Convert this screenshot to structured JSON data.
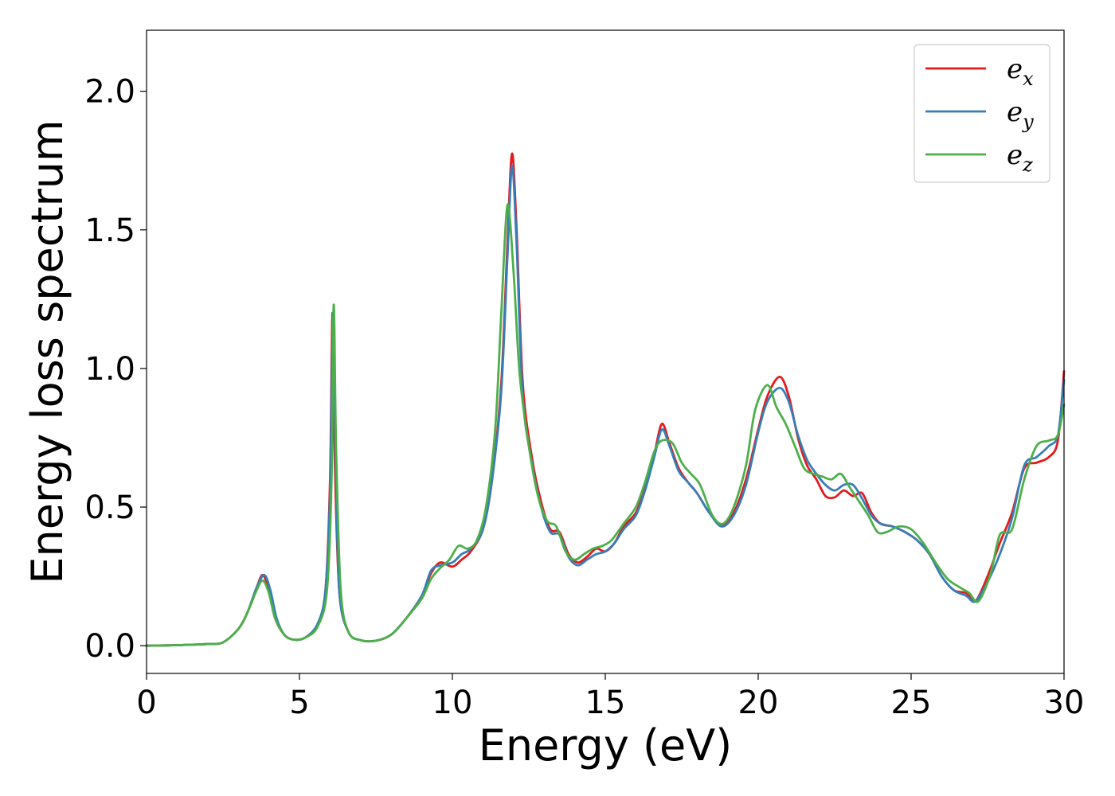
{
  "chart_data": {
    "type": "line",
    "title": "",
    "xlabel": "Energy (eV)",
    "ylabel": "Energy loss spectrum",
    "xlim": [
      0,
      30
    ],
    "ylim": [
      -0.1,
      2.22
    ],
    "xticks": [
      0,
      5,
      10,
      15,
      20,
      25,
      30
    ],
    "xtick_labels": [
      "0",
      "5",
      "10",
      "15",
      "20",
      "25",
      "30"
    ],
    "yticks": [
      0.0,
      0.5,
      1.0,
      1.5,
      2.0
    ],
    "ytick_labels": [
      "0.0",
      "0.5",
      "1.0",
      "1.5",
      "2.0"
    ],
    "grid": false,
    "legend_position": "top-right",
    "series": [
      {
        "name": "e_x",
        "legend_base": "e",
        "legend_sub": "x",
        "color": "#e41a1c",
        "points": [
          [
            0,
            0
          ],
          [
            1,
            0.002
          ],
          [
            2,
            0.006
          ],
          [
            2.5,
            0.012
          ],
          [
            3,
            0.06
          ],
          [
            3.3,
            0.12
          ],
          [
            3.6,
            0.21
          ],
          [
            3.8,
            0.255
          ],
          [
            4.0,
            0.2
          ],
          [
            4.2,
            0.1
          ],
          [
            4.5,
            0.04
          ],
          [
            4.8,
            0.022
          ],
          [
            5.2,
            0.03
          ],
          [
            5.6,
            0.08
          ],
          [
            5.85,
            0.2
          ],
          [
            6.0,
            0.6
          ],
          [
            6.08,
            1.2
          ],
          [
            6.15,
            0.7
          ],
          [
            6.3,
            0.2
          ],
          [
            6.6,
            0.05
          ],
          [
            7.0,
            0.02
          ],
          [
            7.5,
            0.018
          ],
          [
            8.0,
            0.04
          ],
          [
            8.5,
            0.1
          ],
          [
            9.0,
            0.18
          ],
          [
            9.3,
            0.26
          ],
          [
            9.6,
            0.3
          ],
          [
            10.0,
            0.285
          ],
          [
            10.3,
            0.31
          ],
          [
            10.6,
            0.34
          ],
          [
            11.0,
            0.42
          ],
          [
            11.3,
            0.6
          ],
          [
            11.6,
            0.95
          ],
          [
            11.8,
            1.45
          ],
          [
            11.95,
            1.775
          ],
          [
            12.1,
            1.5
          ],
          [
            12.3,
            0.95
          ],
          [
            12.6,
            0.68
          ],
          [
            12.9,
            0.52
          ],
          [
            13.2,
            0.42
          ],
          [
            13.5,
            0.41
          ],
          [
            13.8,
            0.33
          ],
          [
            14.1,
            0.3
          ],
          [
            14.4,
            0.32
          ],
          [
            14.7,
            0.35
          ],
          [
            15.0,
            0.34
          ],
          [
            15.3,
            0.37
          ],
          [
            15.6,
            0.43
          ],
          [
            16.0,
            0.48
          ],
          [
            16.3,
            0.57
          ],
          [
            16.6,
            0.69
          ],
          [
            16.85,
            0.8
          ],
          [
            17.1,
            0.73
          ],
          [
            17.4,
            0.64
          ],
          [
            17.7,
            0.59
          ],
          [
            18.0,
            0.55
          ],
          [
            18.4,
            0.48
          ],
          [
            18.8,
            0.435
          ],
          [
            19.2,
            0.48
          ],
          [
            19.6,
            0.6
          ],
          [
            20.0,
            0.78
          ],
          [
            20.3,
            0.9
          ],
          [
            20.7,
            0.97
          ],
          [
            21.0,
            0.9
          ],
          [
            21.3,
            0.75
          ],
          [
            21.6,
            0.65
          ],
          [
            21.9,
            0.6
          ],
          [
            22.2,
            0.54
          ],
          [
            22.5,
            0.535
          ],
          [
            22.8,
            0.56
          ],
          [
            23.1,
            0.54
          ],
          [
            23.4,
            0.55
          ],
          [
            23.7,
            0.48
          ],
          [
            24.0,
            0.44
          ],
          [
            24.4,
            0.43
          ],
          [
            24.8,
            0.41
          ],
          [
            25.2,
            0.38
          ],
          [
            25.6,
            0.33
          ],
          [
            26.0,
            0.25
          ],
          [
            26.4,
            0.2
          ],
          [
            26.8,
            0.19
          ],
          [
            27.1,
            0.16
          ],
          [
            27.5,
            0.25
          ],
          [
            27.9,
            0.37
          ],
          [
            28.3,
            0.48
          ],
          [
            28.7,
            0.64
          ],
          [
            29.1,
            0.66
          ],
          [
            29.5,
            0.68
          ],
          [
            29.8,
            0.74
          ],
          [
            30,
            0.99
          ]
        ]
      },
      {
        "name": "e_y",
        "legend_base": "e",
        "legend_sub": "y",
        "color": "#377eb8",
        "points": [
          [
            0,
            0
          ],
          [
            1,
            0.002
          ],
          [
            2,
            0.006
          ],
          [
            2.5,
            0.012
          ],
          [
            3,
            0.06
          ],
          [
            3.3,
            0.12
          ],
          [
            3.6,
            0.21
          ],
          [
            3.85,
            0.255
          ],
          [
            4.05,
            0.2
          ],
          [
            4.25,
            0.1
          ],
          [
            4.5,
            0.04
          ],
          [
            4.8,
            0.022
          ],
          [
            5.2,
            0.03
          ],
          [
            5.6,
            0.08
          ],
          [
            5.85,
            0.2
          ],
          [
            6.0,
            0.55
          ],
          [
            6.1,
            1.2
          ],
          [
            6.18,
            0.7
          ],
          [
            6.3,
            0.2
          ],
          [
            6.6,
            0.05
          ],
          [
            7.0,
            0.02
          ],
          [
            7.5,
            0.018
          ],
          [
            8.0,
            0.04
          ],
          [
            8.5,
            0.1
          ],
          [
            9.0,
            0.18
          ],
          [
            9.3,
            0.27
          ],
          [
            9.6,
            0.29
          ],
          [
            10.0,
            0.3
          ],
          [
            10.3,
            0.33
          ],
          [
            10.6,
            0.35
          ],
          [
            11.0,
            0.42
          ],
          [
            11.3,
            0.6
          ],
          [
            11.6,
            0.92
          ],
          [
            11.8,
            1.4
          ],
          [
            11.95,
            1.73
          ],
          [
            12.1,
            1.45
          ],
          [
            12.3,
            0.9
          ],
          [
            12.6,
            0.66
          ],
          [
            12.9,
            0.5
          ],
          [
            13.2,
            0.41
          ],
          [
            13.5,
            0.4
          ],
          [
            13.8,
            0.32
          ],
          [
            14.1,
            0.29
          ],
          [
            14.4,
            0.31
          ],
          [
            14.7,
            0.33
          ],
          [
            15.0,
            0.34
          ],
          [
            15.3,
            0.37
          ],
          [
            15.6,
            0.42
          ],
          [
            16.0,
            0.47
          ],
          [
            16.3,
            0.56
          ],
          [
            16.6,
            0.68
          ],
          [
            16.85,
            0.78
          ],
          [
            17.1,
            0.72
          ],
          [
            17.4,
            0.63
          ],
          [
            17.7,
            0.59
          ],
          [
            18.0,
            0.55
          ],
          [
            18.4,
            0.48
          ],
          [
            18.8,
            0.43
          ],
          [
            19.2,
            0.47
          ],
          [
            19.6,
            0.58
          ],
          [
            20.0,
            0.77
          ],
          [
            20.3,
            0.88
          ],
          [
            20.7,
            0.93
          ],
          [
            21.0,
            0.88
          ],
          [
            21.3,
            0.76
          ],
          [
            21.6,
            0.67
          ],
          [
            21.9,
            0.62
          ],
          [
            22.2,
            0.58
          ],
          [
            22.5,
            0.56
          ],
          [
            22.8,
            0.58
          ],
          [
            23.1,
            0.58
          ],
          [
            23.4,
            0.53
          ],
          [
            23.7,
            0.47
          ],
          [
            24.0,
            0.44
          ],
          [
            24.4,
            0.43
          ],
          [
            24.8,
            0.41
          ],
          [
            25.2,
            0.38
          ],
          [
            25.6,
            0.33
          ],
          [
            26.0,
            0.25
          ],
          [
            26.4,
            0.2
          ],
          [
            26.8,
            0.18
          ],
          [
            27.1,
            0.16
          ],
          [
            27.5,
            0.23
          ],
          [
            27.9,
            0.33
          ],
          [
            28.3,
            0.46
          ],
          [
            28.7,
            0.65
          ],
          [
            29.1,
            0.68
          ],
          [
            29.5,
            0.72
          ],
          [
            29.8,
            0.76
          ],
          [
            30,
            0.96
          ]
        ]
      },
      {
        "name": "e_z",
        "legend_base": "e",
        "legend_sub": "z",
        "color": "#4daf4a",
        "points": [
          [
            0,
            0
          ],
          [
            1,
            0.002
          ],
          [
            2,
            0.006
          ],
          [
            2.5,
            0.012
          ],
          [
            3,
            0.06
          ],
          [
            3.3,
            0.12
          ],
          [
            3.6,
            0.2
          ],
          [
            3.8,
            0.235
          ],
          [
            4.0,
            0.19
          ],
          [
            4.2,
            0.1
          ],
          [
            4.5,
            0.04
          ],
          [
            4.8,
            0.022
          ],
          [
            5.2,
            0.03
          ],
          [
            5.6,
            0.07
          ],
          [
            5.9,
            0.2
          ],
          [
            6.05,
            0.6
          ],
          [
            6.12,
            1.23
          ],
          [
            6.2,
            0.7
          ],
          [
            6.35,
            0.2
          ],
          [
            6.6,
            0.05
          ],
          [
            7.0,
            0.02
          ],
          [
            7.5,
            0.018
          ],
          [
            8.0,
            0.04
          ],
          [
            8.5,
            0.1
          ],
          [
            9.0,
            0.17
          ],
          [
            9.3,
            0.24
          ],
          [
            9.6,
            0.28
          ],
          [
            9.9,
            0.31
          ],
          [
            10.2,
            0.36
          ],
          [
            10.5,
            0.35
          ],
          [
            10.8,
            0.38
          ],
          [
            11.1,
            0.5
          ],
          [
            11.4,
            0.78
          ],
          [
            11.6,
            1.2
          ],
          [
            11.8,
            1.59
          ],
          [
            12.0,
            1.35
          ],
          [
            12.2,
            0.98
          ],
          [
            12.5,
            0.72
          ],
          [
            12.8,
            0.54
          ],
          [
            13.1,
            0.45
          ],
          [
            13.4,
            0.43
          ],
          [
            13.7,
            0.34
          ],
          [
            14.0,
            0.31
          ],
          [
            14.3,
            0.33
          ],
          [
            14.6,
            0.35
          ],
          [
            14.9,
            0.36
          ],
          [
            15.2,
            0.38
          ],
          [
            15.6,
            0.44
          ],
          [
            16.0,
            0.5
          ],
          [
            16.3,
            0.59
          ],
          [
            16.6,
            0.7
          ],
          [
            16.85,
            0.74
          ],
          [
            17.2,
            0.73
          ],
          [
            17.5,
            0.66
          ],
          [
            17.8,
            0.62
          ],
          [
            18.1,
            0.58
          ],
          [
            18.5,
            0.47
          ],
          [
            18.85,
            0.44
          ],
          [
            19.2,
            0.5
          ],
          [
            19.6,
            0.65
          ],
          [
            19.9,
            0.85
          ],
          [
            20.3,
            0.94
          ],
          [
            20.6,
            0.86
          ],
          [
            20.9,
            0.8
          ],
          [
            21.2,
            0.72
          ],
          [
            21.5,
            0.64
          ],
          [
            21.8,
            0.62
          ],
          [
            22.1,
            0.61
          ],
          [
            22.4,
            0.6
          ],
          [
            22.7,
            0.62
          ],
          [
            23.0,
            0.57
          ],
          [
            23.3,
            0.52
          ],
          [
            23.6,
            0.47
          ],
          [
            23.9,
            0.41
          ],
          [
            24.2,
            0.41
          ],
          [
            24.6,
            0.43
          ],
          [
            25.0,
            0.42
          ],
          [
            25.4,
            0.37
          ],
          [
            25.8,
            0.3
          ],
          [
            26.2,
            0.24
          ],
          [
            26.6,
            0.21
          ],
          [
            26.9,
            0.19
          ],
          [
            27.2,
            0.16
          ],
          [
            27.6,
            0.26
          ],
          [
            27.9,
            0.4
          ],
          [
            28.3,
            0.42
          ],
          [
            28.7,
            0.6
          ],
          [
            29.1,
            0.72
          ],
          [
            29.5,
            0.74
          ],
          [
            29.8,
            0.76
          ],
          [
            30,
            0.87
          ]
        ]
      }
    ]
  }
}
